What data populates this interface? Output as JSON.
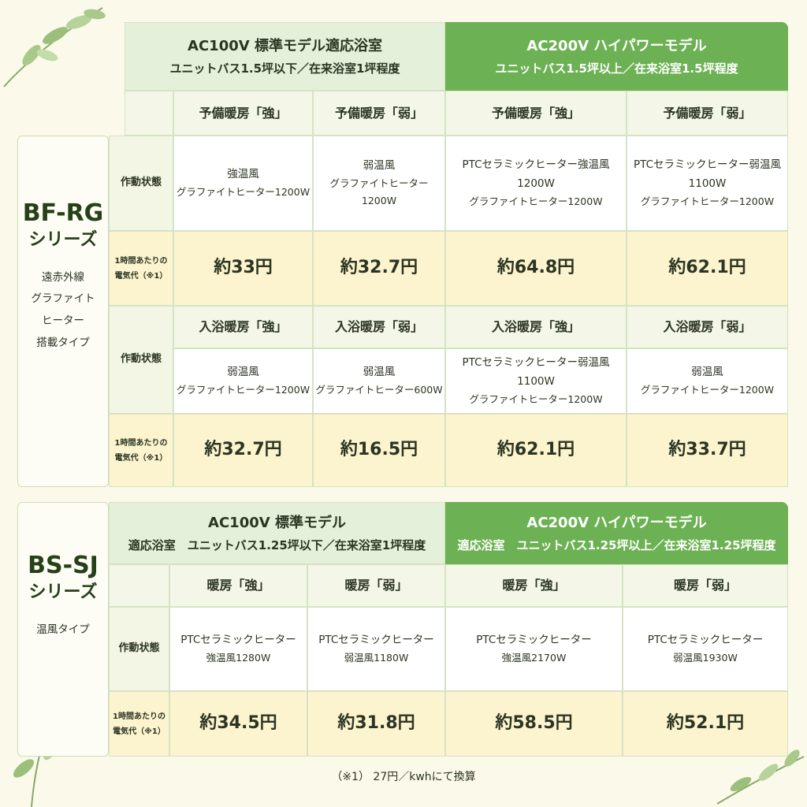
{
  "sections": [
    {
      "series": "BF-RG",
      "series_suffix": "シリーズ",
      "description": [
        "遠赤外線",
        "グラファイト",
        "ヒーター",
        "搭載タイプ"
      ],
      "headers": [
        {
          "title": "AC100V 標準モデル適応浴室",
          "detail": "ユニットバス1.5坪以下／在来浴室1坪程度"
        },
        {
          "title": "AC200V ハイパワーモデル",
          "detail": "ユニットバス1.5坪以上／在来浴室1.5坪程度"
        }
      ],
      "blocks": [
        {
          "modes": [
            "予備暖房「強」",
            "予備暖房「弱」",
            "予備暖房「強」",
            "予備暖房「弱」"
          ],
          "state_label": "作動状態",
          "states": [
            [
              "強温風",
              "グラファイトヒーター1200W"
            ],
            [
              "弱温風",
              "グラファイトヒーター1200W"
            ],
            [
              "PTCセラミックヒーター強温風1200W",
              "グラファイトヒーター1200W"
            ],
            [
              "PTCセラミックヒーター弱温風1100W",
              "グラファイトヒーター1200W"
            ]
          ],
          "cost_label": [
            "1時間あたりの",
            "電気代（※1）"
          ],
          "costs": [
            "約33円",
            "約32.7円",
            "約64.8円",
            "約62.1円"
          ]
        },
        {
          "modes": [
            "入浴暖房「強」",
            "入浴暖房「弱」",
            "入浴暖房「強」",
            "入浴暖房「弱」"
          ],
          "state_label": "作動状態",
          "states": [
            [
              "弱温風",
              "グラファイトヒーター1200W"
            ],
            [
              "弱温風",
              "グラファイトヒーター600W"
            ],
            [
              "PTCセラミックヒーター弱温風1100W",
              "グラファイトヒーター1200W"
            ],
            [
              "弱温風",
              "グラファイトヒーター1200W"
            ]
          ],
          "cost_label": [
            "1時間あたりの",
            "電気代（※1）"
          ],
          "costs": [
            "約32.7円",
            "約16.5円",
            "約62.1円",
            "約33.7円"
          ]
        }
      ]
    },
    {
      "series": "BS-SJ",
      "series_suffix": "シリーズ",
      "description": [
        "温風タイプ"
      ],
      "headers": [
        {
          "title": "AC100V 標準モデル",
          "detail": "適応浴室　ユニットバス1.25坪以下／在来浴室1坪程度"
        },
        {
          "title": "AC200V ハイパワーモデル",
          "detail": "適応浴室　ユニットバス1.25坪以上／在来浴室1.25坪程度"
        }
      ],
      "blocks": [
        {
          "modes": [
            "暖房「強」",
            "暖房「弱」",
            "暖房「強」",
            "暖房「弱」"
          ],
          "state_label": "作動状態",
          "states": [
            [
              "PTCセラミックヒーター",
              "強温風1280W"
            ],
            [
              "PTCセラミックヒーター",
              "弱温風1180W"
            ],
            [
              "PTCセラミックヒーター",
              "強温風2170W"
            ],
            [
              "PTCセラミックヒーター",
              "弱温風1930W"
            ]
          ],
          "cost_label": [
            "1時間あたりの",
            "電気代（※1）"
          ],
          "costs": [
            "約34.5円",
            "約31.8円",
            "約58.5円",
            "約52.1円"
          ]
        }
      ]
    }
  ],
  "footnote": "（※1） 27円／kwhにて換算"
}
